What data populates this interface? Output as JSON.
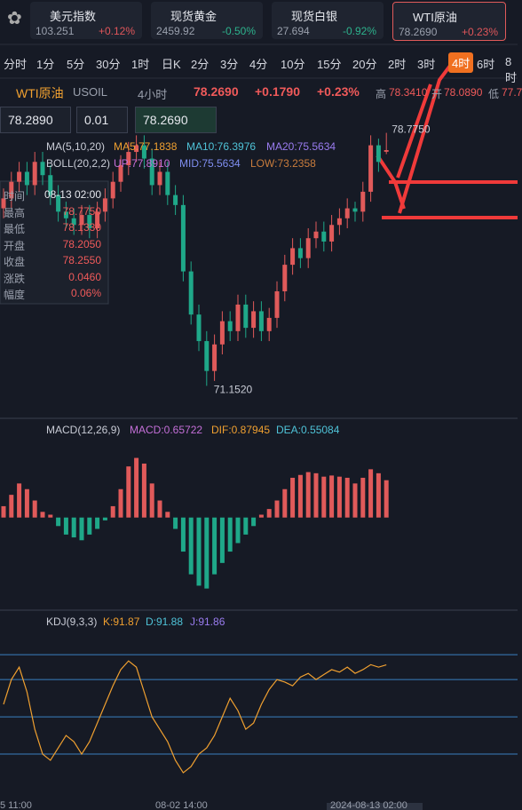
{
  "tabs": [
    {
      "name": "美元指数",
      "price": "103.251",
      "change": "+0.12%",
      "color": "#e0565a"
    },
    {
      "name": "现货黄金",
      "price": "2459.92",
      "change": "-0.50%",
      "color": "#2db38d"
    },
    {
      "name": "现货白银",
      "price": "27.694",
      "change": "-0.92%",
      "color": "#2db38d"
    },
    {
      "name": "WTI原油",
      "price": "78.2690",
      "change": "+0.23%",
      "color": "#e0565a"
    }
  ],
  "periods": [
    "分时",
    "1分",
    "5分",
    "30分",
    "1时",
    "日K",
    "2分",
    "3分",
    "4分",
    "10分",
    "15分",
    "20分",
    "2时",
    "3时",
    "4时",
    "6时",
    "8时"
  ],
  "selected_period": 14,
  "info": {
    "name": "WTI原油",
    "code": "USOIL",
    "interval": "4小时",
    "price": "78.2690",
    "change": "+0.1790",
    "percent": "+0.23%",
    "high_label": "高",
    "high": "78.3410",
    "open_label": "开",
    "open": "78.0890",
    "low_label": "低",
    "low": "77.7"
  },
  "inputs": [
    "78.2890",
    "0.01",
    "78.2690"
  ],
  "ma": {
    "name": "MA(5,10,20)",
    "ma5": "MA5:77.1838",
    "ma10": "MA10:76.3976",
    "ma20": "MA20:75.5634"
  },
  "boll": {
    "name": "BOLL(20,2,2)",
    "up": "UP:77.8910",
    "mid": "MID:75.5634",
    "low": "LOW:73.2358"
  },
  "tooltip": [
    [
      "时间",
      "08-13 02:00"
    ],
    [
      "最高",
      "78.7750"
    ],
    [
      "最低",
      "78.1330"
    ],
    [
      "开盘",
      "78.2050"
    ],
    [
      "收盘",
      "78.2550"
    ],
    [
      "涨跌",
      "0.0460"
    ],
    [
      "幅度",
      "0.06%"
    ]
  ],
  "chart_data": {
    "type": "candlestick",
    "ylim": [
      70.2,
      79.7
    ],
    "high_note": "78.7750",
    "low_note": "71.1520",
    "up_color": "#e05a5a",
    "down_color": "#1fa889",
    "candles": [
      [
        76.5,
        77.1,
        76.2,
        76.8
      ],
      [
        76.8,
        77.6,
        76.5,
        77.3
      ],
      [
        77.3,
        77.9,
        77.0,
        77.6
      ],
      [
        77.6,
        77.9,
        76.9,
        77.2
      ],
      [
        77.2,
        78.2,
        76.9,
        77.9
      ],
      [
        77.9,
        78.2,
        77.2,
        77.5
      ],
      [
        77.5,
        77.8,
        76.6,
        76.9
      ],
      [
        76.9,
        77.2,
        76.1,
        76.4
      ],
      [
        76.4,
        76.7,
        75.9,
        76.2
      ],
      [
        76.2,
        76.5,
        75.7,
        76.0
      ],
      [
        76.0,
        76.6,
        75.7,
        76.3
      ],
      [
        76.3,
        76.6,
        75.6,
        75.9
      ],
      [
        75.9,
        76.7,
        75.6,
        76.4
      ],
      [
        76.4,
        77.1,
        76.1,
        76.8
      ],
      [
        76.8,
        77.6,
        76.5,
        77.3
      ],
      [
        77.3,
        78.1,
        77.0,
        77.8
      ],
      [
        77.8,
        78.5,
        77.5,
        78.2
      ],
      [
        78.2,
        78.7,
        77.9,
        78.4
      ],
      [
        78.4,
        78.7,
        77.7,
        78.0
      ],
      [
        78.0,
        78.3,
        76.9,
        77.2
      ],
      [
        77.2,
        77.9,
        76.9,
        77.6
      ],
      [
        77.6,
        77.9,
        76.6,
        76.9
      ],
      [
        76.9,
        77.2,
        76.3,
        76.6
      ],
      [
        76.6,
        76.9,
        74.3,
        74.6
      ],
      [
        74.6,
        74.9,
        73.0,
        73.3
      ],
      [
        73.3,
        73.6,
        72.2,
        72.5
      ],
      [
        72.5,
        72.8,
        71.152,
        71.6
      ],
      [
        71.6,
        72.7,
        71.3,
        72.4
      ],
      [
        72.4,
        73.4,
        72.1,
        73.1
      ],
      [
        73.1,
        73.4,
        72.5,
        72.8
      ],
      [
        72.8,
        73.9,
        72.5,
        73.6
      ],
      [
        73.6,
        73.9,
        72.6,
        72.9
      ],
      [
        72.9,
        73.7,
        72.6,
        73.4
      ],
      [
        73.4,
        73.7,
        72.5,
        72.8
      ],
      [
        72.8,
        73.5,
        72.5,
        73.2
      ],
      [
        73.2,
        74.3,
        72.9,
        74.0
      ],
      [
        74.0,
        75.1,
        73.7,
        74.8
      ],
      [
        74.8,
        75.6,
        74.5,
        75.3
      ],
      [
        75.3,
        75.6,
        74.7,
        75.0
      ],
      [
        75.0,
        75.9,
        74.7,
        75.6
      ],
      [
        75.6,
        76.1,
        75.3,
        75.8
      ],
      [
        75.8,
        76.1,
        75.2,
        75.5
      ],
      [
        75.5,
        76.3,
        75.2,
        76.0
      ],
      [
        76.0,
        76.5,
        75.7,
        76.2
      ],
      [
        76.2,
        76.8,
        75.9,
        76.5
      ],
      [
        76.5,
        76.7,
        76.1,
        76.4
      ],
      [
        76.4,
        77.3,
        76.1,
        77.0
      ],
      [
        77.0,
        78.7,
        76.7,
        78.4
      ],
      [
        78.4,
        78.6,
        77.6,
        77.9
      ],
      [
        78.205,
        78.775,
        78.133,
        78.255
      ]
    ],
    "macd": {
      "name": "MACD(12,26,9)",
      "macd": "MACD:0.65722",
      "dif": "DIF:0.87945",
      "dea": "DEA:0.55084",
      "ylim": [
        -1.6,
        1.45
      ],
      "values": [
        0.2,
        0.4,
        0.6,
        0.5,
        0.3,
        0.1,
        0.05,
        -0.15,
        -0.3,
        -0.35,
        -0.4,
        -0.3,
        -0.2,
        -0.05,
        0.2,
        0.5,
        0.9,
        1.05,
        0.95,
        0.6,
        0.3,
        0.1,
        -0.2,
        -0.6,
        -1.0,
        -1.2,
        -1.25,
        -1.0,
        -0.8,
        -0.6,
        -0.45,
        -0.3,
        -0.15,
        0.05,
        0.15,
        0.3,
        0.5,
        0.7,
        0.75,
        0.8,
        0.78,
        0.72,
        0.74,
        0.72,
        0.7,
        0.6,
        0.7,
        0.85,
        0.78,
        0.65722
      ]
    },
    "kdj": {
      "name": "KDJ(9,3,3)",
      "k": "K:91.87",
      "d": "D:91.88",
      "j": "J:91.86",
      "ylim": [
        -20,
        123
      ],
      "levels": [
        100,
        80,
        50,
        20
      ],
      "values": [
        60,
        80,
        90,
        70,
        40,
        20,
        15,
        25,
        35,
        30,
        20,
        30,
        45,
        60,
        75,
        88,
        95,
        90,
        70,
        50,
        40,
        30,
        15,
        5,
        10,
        20,
        25,
        35,
        50,
        65,
        55,
        40,
        45,
        60,
        72,
        80,
        78,
        75,
        82,
        85,
        80,
        84,
        88,
        86,
        90,
        85,
        88,
        92,
        90,
        91.87
      ]
    },
    "time_labels": [
      "5 11:00",
      "08-02 14:00",
      "2024-08-13 02:00"
    ]
  }
}
